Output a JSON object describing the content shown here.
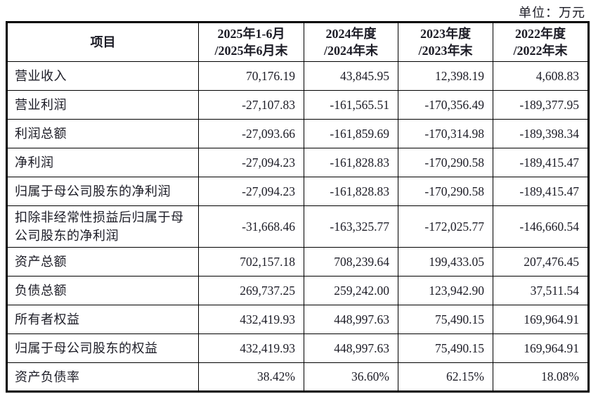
{
  "unit_label": "单位：万元",
  "colors": {
    "text": "#1c1c26",
    "border": "#000000",
    "background": "#ffffff"
  },
  "table": {
    "header": {
      "item": "项目",
      "periods": [
        {
          "line1": "2025年1-6月",
          "line2": "/2025年6月末"
        },
        {
          "line1": "2024年度",
          "line2": "/2024年末"
        },
        {
          "line1": "2023年度",
          "line2": "/2023年末"
        },
        {
          "line1": "2022年度",
          "line2": "/2022年末"
        }
      ]
    },
    "rows": [
      {
        "label": "营业收入",
        "values": [
          "70,176.19",
          "43,845.95",
          "12,398.19",
          "4,608.83"
        ]
      },
      {
        "label": "营业利润",
        "values": [
          "-27,107.83",
          "-161,565.51",
          "-170,356.49",
          "-189,377.95"
        ]
      },
      {
        "label": "利润总额",
        "values": [
          "-27,093.66",
          "-161,859.69",
          "-170,314.98",
          "-189,398.34"
        ]
      },
      {
        "label": "净利润",
        "values": [
          "-27,094.23",
          "-161,828.83",
          "-170,290.58",
          "-189,415.47"
        ]
      },
      {
        "label": "归属于母公司股东的净利润",
        "values": [
          "-27,094.23",
          "-161,828.83",
          "-170,290.58",
          "-189,415.47"
        ]
      },
      {
        "label": "扣除非经常性损益后归属于母公司股东的净利润",
        "values": [
          "-31,668.46",
          "-163,325.77",
          "-172,025.77",
          "-146,660.54"
        ]
      },
      {
        "label": "资产总额",
        "values": [
          "702,157.18",
          "708,239.64",
          "199,433.05",
          "207,476.45"
        ]
      },
      {
        "label": "负债总额",
        "values": [
          "269,737.25",
          "259,242.00",
          "123,942.90",
          "37,511.54"
        ]
      },
      {
        "label": "所有者权益",
        "values": [
          "432,419.93",
          "448,997.63",
          "75,490.15",
          "169,964.91"
        ]
      },
      {
        "label": "归属于母公司股东的权益",
        "values": [
          "432,419.93",
          "448,997.63",
          "75,490.15",
          "169,964.91"
        ]
      },
      {
        "label": "资产负债率",
        "values": [
          "38.42%",
          "36.60%",
          "62.15%",
          "18.08%"
        ]
      }
    ]
  }
}
